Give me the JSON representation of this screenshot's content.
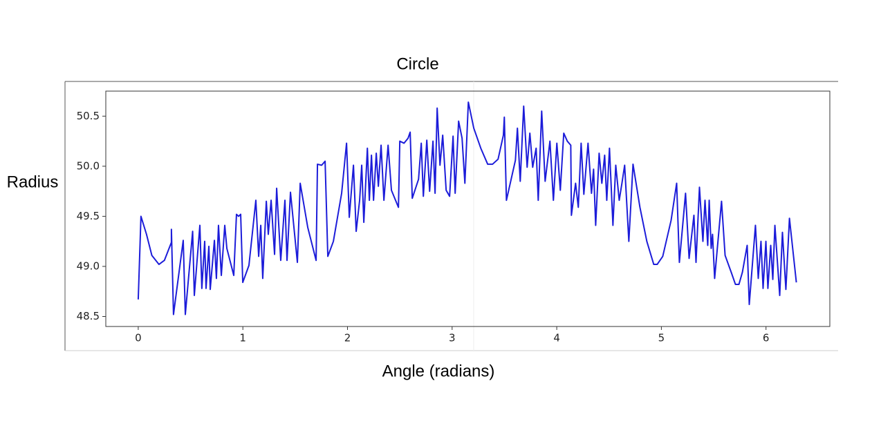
{
  "chart_data": {
    "type": "line",
    "title": "Circle",
    "x_label": "Angle (radians)",
    "y_label": "Radius",
    "color": "#1c1cd9",
    "grid": false,
    "xlim": [
      -0.31,
      6.61
    ],
    "ylim": [
      48.4,
      50.75
    ],
    "xticks": [
      0,
      1,
      2,
      3,
      4,
      5,
      6
    ],
    "yticks": [
      48.5,
      {
        "value": 49,
        "label": "49.0"
      },
      49.5,
      {
        "value": 50,
        "label": "50.0"
      },
      50.5
    ],
    "x": [
      0,
      0.026,
      0.079,
      0.13,
      0.198,
      0.25,
      0.317,
      0.317,
      0.337,
      0.43,
      0.45,
      0.52,
      0.536,
      0.589,
      0.608,
      0.635,
      0.648,
      0.675,
      0.688,
      0.728,
      0.747,
      0.767,
      0.794,
      0.827,
      0.847,
      0.913,
      0.939,
      0.959,
      0.979,
      0.999,
      1.058,
      1.124,
      1.151,
      1.171,
      1.19,
      1.224,
      1.243,
      1.27,
      1.303,
      1.323,
      1.362,
      1.402,
      1.422,
      1.455,
      1.521,
      1.548,
      1.62,
      1.7,
      1.713,
      1.753,
      1.786,
      1.812,
      1.865,
      1.944,
      1.991,
      2.017,
      2.057,
      2.083,
      2.116,
      2.136,
      2.156,
      2.19,
      2.209,
      2.229,
      2.249,
      2.275,
      2.295,
      2.321,
      2.348,
      2.388,
      2.42,
      2.487,
      2.5,
      2.54,
      2.579,
      2.599,
      2.619,
      2.679,
      2.705,
      2.725,
      2.758,
      2.785,
      2.817,
      2.837,
      2.857,
      2.884,
      2.91,
      2.943,
      2.976,
      3.009,
      3.029,
      3.062,
      3.095,
      3.122,
      3.155,
      3.207,
      3.274,
      3.34,
      3.386,
      3.439,
      3.49,
      3.499,
      3.519,
      3.605,
      3.624,
      3.651,
      3.684,
      3.717,
      3.743,
      3.77,
      3.803,
      3.823,
      3.856,
      3.889,
      3.935,
      3.968,
      4.001,
      4.034,
      4.067,
      4.101,
      4.134,
      4.14,
      4.18,
      4.206,
      4.233,
      4.259,
      4.299,
      4.332,
      4.352,
      4.372,
      4.405,
      4.431,
      4.458,
      4.478,
      4.504,
      4.537,
      4.564,
      4.597,
      4.623,
      4.649,
      4.689,
      4.729,
      4.795,
      4.861,
      4.927,
      4.96,
      5.013,
      5.093,
      5.146,
      5.172,
      5.231,
      5.265,
      5.311,
      5.331,
      5.364,
      5.397,
      5.417,
      5.443,
      5.457,
      5.476,
      5.489,
      5.509,
      5.575,
      5.609,
      5.668,
      5.708,
      5.741,
      5.774,
      5.82,
      5.84,
      5.899,
      5.926,
      5.952,
      5.972,
      5.999,
      6.018,
      6.045,
      6.065,
      6.085,
      6.131,
      6.157,
      6.19,
      6.224,
      6.29
    ],
    "values": [
      48.67,
      49.5,
      49.32,
      49.11,
      49.02,
      49.06,
      49.24,
      49.37,
      48.52,
      49.26,
      48.52,
      49.35,
      48.71,
      49.41,
      48.78,
      49.25,
      48.78,
      49.2,
      48.77,
      49.26,
      48.88,
      49.41,
      48.91,
      49.41,
      49.18,
      48.91,
      49.52,
      49.5,
      49.52,
      48.84,
      49.01,
      49.66,
      49.1,
      49.41,
      48.88,
      49.65,
      49.32,
      49.66,
      49.12,
      49.78,
      49.06,
      49.66,
      49.06,
      49.74,
      49.04,
      49.83,
      49.39,
      49.06,
      50.02,
      50.01,
      50.05,
      49.1,
      49.25,
      49.73,
      50.23,
      49.49,
      50.01,
      49.35,
      49.66,
      50.01,
      49.44,
      50.18,
      49.66,
      50.11,
      49.66,
      50.13,
      49.8,
      50.21,
      49.66,
      50.21,
      49.76,
      49.59,
      50.25,
      50.23,
      50.28,
      50.34,
      49.68,
      49.87,
      50.23,
      49.7,
      50.26,
      49.75,
      50.25,
      49.73,
      50.58,
      50.01,
      50.31,
      49.76,
      49.7,
      50.3,
      49.73,
      50.45,
      50.28,
      49.83,
      50.64,
      50.38,
      50.18,
      50.02,
      50.02,
      50.07,
      50.31,
      50.49,
      49.66,
      50.06,
      50.38,
      49.85,
      50.6,
      49.99,
      50.33,
      49.99,
      50.18,
      49.66,
      50.55,
      49.85,
      50.25,
      49.66,
      50.23,
      49.76,
      50.33,
      50.25,
      50.21,
      49.51,
      49.83,
      49.59,
      50.23,
      49.72,
      50.23,
      49.73,
      49.97,
      49.41,
      50.13,
      49.83,
      50.11,
      49.66,
      50.18,
      49.41,
      50.01,
      49.66,
      49.83,
      50.01,
      49.25,
      50.02,
      49.59,
      49.25,
      49.02,
      49.02,
      49.1,
      49.46,
      49.83,
      49.04,
      49.73,
      49.08,
      49.51,
      49.04,
      49.79,
      49.25,
      49.66,
      49.21,
      49.66,
      49.18,
      49.32,
      48.88,
      49.65,
      49.11,
      48.94,
      48.82,
      48.82,
      48.94,
      49.21,
      48.62,
      49.41,
      48.88,
      49.25,
      48.78,
      49.25,
      48.78,
      49.21,
      48.87,
      49.41,
      48.71,
      49.34,
      48.77,
      49.48,
      48.84
    ]
  }
}
